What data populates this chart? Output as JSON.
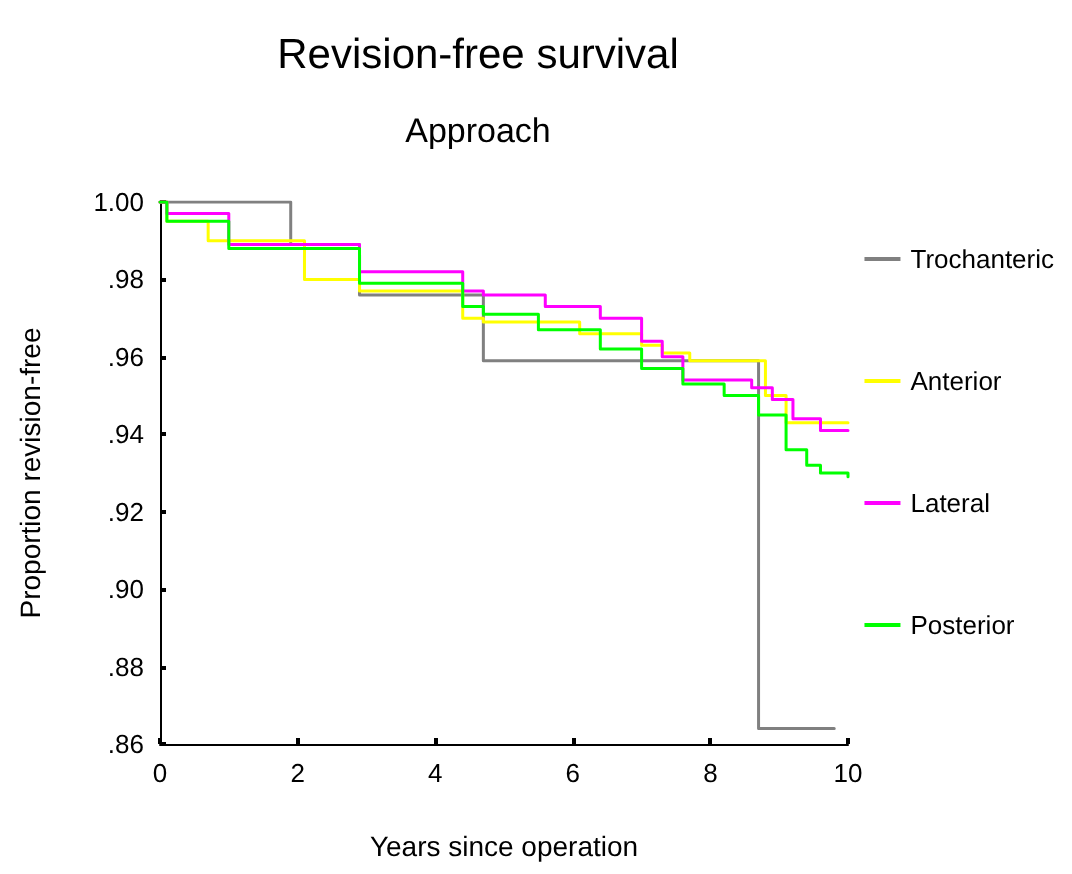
{
  "chart_data": {
    "type": "step",
    "title": "Revision-free survival",
    "subtitle": "Approach",
    "xlabel": "Years since operation",
    "ylabel": "Proportion revision-free",
    "xlim": [
      0,
      10
    ],
    "xticks": [
      0,
      2,
      4,
      6,
      8,
      10
    ],
    "ylim": [
      0.86,
      1.0
    ],
    "yticks": [
      {
        "value": 0.86,
        "label": ".86"
      },
      {
        "value": 0.88,
        "label": ".88"
      },
      {
        "value": 0.9,
        "label": ".90"
      },
      {
        "value": 0.92,
        "label": ".92"
      },
      {
        "value": 0.94,
        "label": ".94"
      },
      {
        "value": 0.96,
        "label": ".96"
      },
      {
        "value": 0.98,
        "label": ".98"
      },
      {
        "value": 1.0,
        "label": "1.00"
      }
    ],
    "grid": false,
    "legend": "right",
    "marker": "none",
    "line_style": "solid",
    "series": [
      {
        "name": "Trochanteric",
        "color": "#808080",
        "x": [
          0,
          1.9,
          2.9,
          4.7,
          8.7,
          9.8
        ],
        "values": [
          1.0,
          0.989,
          0.976,
          0.959,
          0.864,
          0.864
        ]
      },
      {
        "name": "Anterior",
        "color": "#ffff00",
        "x": [
          0,
          0.1,
          0.7,
          2.1,
          2.9,
          4.4,
          4.7,
          6.1,
          7.0,
          7.3,
          7.7,
          8.8,
          9.1,
          10
        ],
        "values": [
          1.0,
          0.995,
          0.99,
          0.98,
          0.977,
          0.97,
          0.969,
          0.966,
          0.963,
          0.961,
          0.959,
          0.95,
          0.943,
          0.943
        ]
      },
      {
        "name": "Lateral",
        "color": "#ff00ff",
        "x": [
          0,
          0.1,
          1.0,
          2.9,
          4.4,
          4.7,
          5.6,
          6.4,
          7.0,
          7.3,
          7.6,
          8.3,
          8.6,
          8.9,
          9.2,
          9.6,
          10
        ],
        "values": [
          1.0,
          0.997,
          0.989,
          0.982,
          0.977,
          0.976,
          0.973,
          0.97,
          0.964,
          0.96,
          0.954,
          0.954,
          0.952,
          0.949,
          0.944,
          0.941,
          0.941
        ]
      },
      {
        "name": "Posterior",
        "color": "#00ff00",
        "x": [
          0,
          0.1,
          1.0,
          2.9,
          4.4,
          4.7,
          5.5,
          6.4,
          7.0,
          7.6,
          8.2,
          8.7,
          9.1,
          9.4,
          9.6,
          10
        ],
        "values": [
          1.0,
          0.995,
          0.988,
          0.979,
          0.973,
          0.971,
          0.967,
          0.962,
          0.957,
          0.953,
          0.95,
          0.945,
          0.936,
          0.932,
          0.93,
          0.929
        ]
      }
    ]
  }
}
